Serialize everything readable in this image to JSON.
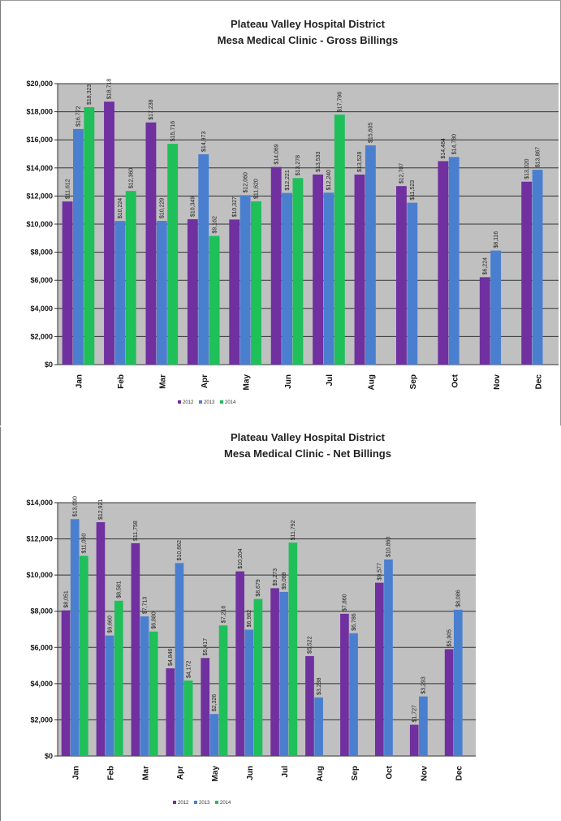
{
  "chart_data": [
    {
      "type": "bar",
      "title": "Plateau Valley Hospital District",
      "subtitle": "Mesa Medical Clinic - Gross Billings",
      "categories": [
        "Jan",
        "Feb",
        "Mar",
        "Apr",
        "May",
        "Jun",
        "Jul",
        "Aug",
        "Sep",
        "Oct",
        "Nov",
        "Dec"
      ],
      "ylim": [
        0,
        20000
      ],
      "yticks": [
        "$0",
        "$2,000",
        "$4,000",
        "$6,000",
        "$8,000",
        "$10,000",
        "$12,000",
        "$14,000",
        "$16,000",
        "$18,000",
        "$20,000"
      ],
      "grid": true,
      "legend": "bottom",
      "series": [
        {
          "name": "2012",
          "color": "#7030a0",
          "values": [
            11612,
            18718,
            17238,
            10349,
            10327,
            14069,
            13533,
            13528,
            12707,
            14484,
            6224,
            13020
          ],
          "labels": [
            "$11,612",
            "$18,718",
            "$17,238",
            "$10,349",
            "$10,327",
            "$14,069",
            "$13,533",
            "$13,528",
            "$12,707",
            "$14,484",
            "$6,224",
            "$13,020"
          ]
        },
        {
          "name": "2013",
          "color": "#4a7fd0",
          "values": [
            16772,
            10224,
            10229,
            14973,
            12060,
            12221,
            12240,
            15605,
            11523,
            14780,
            8116,
            13867
          ],
          "labels": [
            "$16,772",
            "$10,224",
            "$10,229",
            "$14,973",
            "$12,060",
            "$12,221",
            "$12,240",
            "$15,605",
            "$11,523",
            "$14,780",
            "$8,116",
            "$13,867"
          ]
        },
        {
          "name": "2014",
          "color": "#1fbf5a",
          "values": [
            18323,
            12360,
            15716,
            9162,
            11620,
            13278,
            17796,
            null,
            null,
            null,
            null,
            null
          ],
          "labels": [
            "$18,323",
            "$12,360",
            "$15,716",
            "$9,162",
            "$11,620",
            "$13,278",
            "$17,796",
            "",
            "",
            "",
            "",
            ""
          ]
        }
      ]
    },
    {
      "type": "bar",
      "title": "Plateau Valley Hospital District",
      "subtitle": "Mesa Medical Clinic - Net Billings",
      "categories": [
        "Jan",
        "Feb",
        "Mar",
        "Apr",
        "May",
        "Jun",
        "Jul",
        "Aug",
        "Sep",
        "Oct",
        "Nov",
        "Dec"
      ],
      "ylim": [
        0,
        14000
      ],
      "yticks": [
        "$0",
        "$2,000",
        "$4,000",
        "$6,000",
        "$8,000",
        "$10,000",
        "$12,000",
        "$14,000"
      ],
      "grid": true,
      "legend": "bottom",
      "series": [
        {
          "name": "2012",
          "color": "#7030a0",
          "values": [
            8051,
            12921,
            11758,
            4846,
            5417,
            10204,
            9273,
            5522,
            7860,
            9577,
            1727,
            5905
          ],
          "labels": [
            "$8,051",
            "$12,921",
            "$11,758",
            "$4,846",
            "$5,417",
            "$10,204",
            "$9,273",
            "$5,522",
            "$7,860",
            "$9,577",
            "$1,727",
            "$5,905"
          ]
        },
        {
          "name": "2013",
          "color": "#4a7fd0",
          "values": [
            13090,
            6660,
            7713,
            10662,
            2326,
            6982,
            9069,
            3238,
            6786,
            10860,
            3293,
            8086
          ],
          "labels": [
            "$13,090",
            "$6,660",
            "$7,713",
            "$10,662",
            "$2,326",
            "$6,982",
            "$9,069",
            "$3,238",
            "$6,786",
            "$10,860",
            "$3,293",
            "$8,086"
          ]
        },
        {
          "name": "2014",
          "color": "#1fbf5a",
          "values": [
            11060,
            8581,
            6880,
            4172,
            7216,
            8679,
            11792,
            null,
            null,
            null,
            null,
            null
          ],
          "labels": [
            "$11,060",
            "$8,581",
            "$6,880",
            "$4,172",
            "$7,216",
            "$8,679",
            "$11,792",
            "",
            "",
            "",
            "",
            ""
          ]
        }
      ]
    }
  ]
}
